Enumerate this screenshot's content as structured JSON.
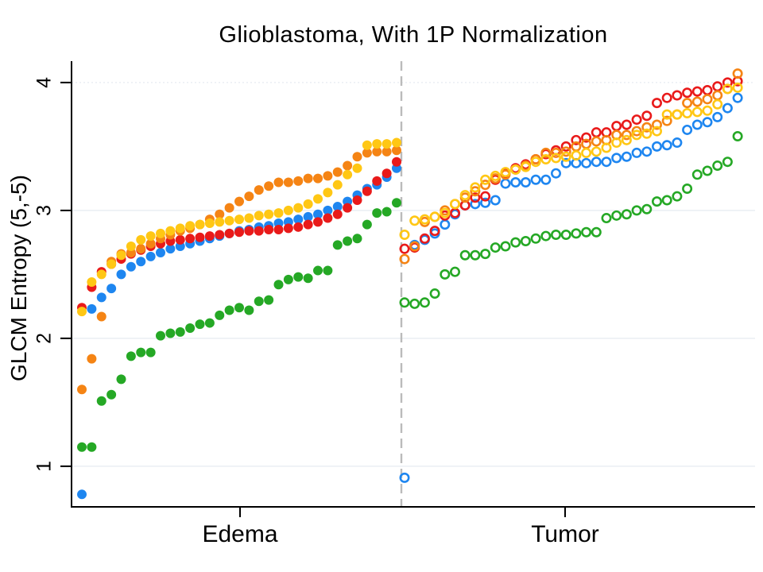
{
  "chart_data": {
    "type": "scatter",
    "title": "Glioblastoma, With 1P Normalization",
    "ylabel": "GLCM Entropy (5,-5)",
    "xlabel": "",
    "yticks": [
      1,
      2,
      3,
      4
    ],
    "ylim": [
      0.68,
      4.17
    ],
    "grid": true,
    "legend_position": "none",
    "groups": [
      {
        "label": "Edema",
        "marker": "filled-circle"
      },
      {
        "label": "Tumor",
        "marker": "open-circle"
      }
    ],
    "divider": {
      "style": "dashed",
      "color": "#BBBBBB"
    },
    "axis_color": "#000000",
    "grid_color": "#E9EEF3",
    "series": [
      {
        "name": "green",
        "color": "#25A825",
        "edema": [
          1.15,
          1.15,
          1.51,
          1.56,
          1.68,
          1.86,
          1.89,
          1.89,
          2.02,
          2.04,
          2.05,
          2.08,
          2.11,
          2.12,
          2.18,
          2.22,
          2.24,
          2.22,
          2.29,
          2.3,
          2.42,
          2.46,
          2.48,
          2.47,
          2.53,
          2.53,
          2.73,
          2.76,
          2.78,
          2.89,
          2.98,
          2.99,
          3.06
        ],
        "tumor": [
          2.28,
          2.27,
          2.28,
          2.35,
          2.5,
          2.52,
          2.65,
          2.65,
          2.66,
          2.71,
          2.72,
          2.75,
          2.76,
          2.78,
          2.8,
          2.81,
          2.81,
          2.82,
          2.83,
          2.83,
          2.94,
          2.96,
          2.97,
          3.0,
          3.01,
          3.07,
          3.08,
          3.11,
          3.17,
          3.28,
          3.31,
          3.35,
          3.38,
          3.58
        ]
      },
      {
        "name": "blue",
        "color": "#1E86F0",
        "edema": [
          0.78,
          2.23,
          2.32,
          2.39,
          2.5,
          2.56,
          2.6,
          2.64,
          2.67,
          2.7,
          2.72,
          2.74,
          2.76,
          2.78,
          2.8,
          2.82,
          2.84,
          2.85,
          2.87,
          2.88,
          2.9,
          2.91,
          2.93,
          2.95,
          2.97,
          3.0,
          3.03,
          3.07,
          3.12,
          3.17,
          3.2,
          3.26,
          3.33
        ],
        "tumor": [
          0.91,
          2.73,
          2.77,
          2.82,
          2.89,
          2.97,
          3.04,
          3.05,
          3.06,
          3.08,
          3.21,
          3.22,
          3.22,
          3.24,
          3.24,
          3.29,
          3.37,
          3.37,
          3.37,
          3.38,
          3.38,
          3.41,
          3.42,
          3.45,
          3.46,
          3.5,
          3.51,
          3.53,
          3.63,
          3.67,
          3.69,
          3.73,
          3.8,
          3.88
        ]
      },
      {
        "name": "red",
        "color": "#E91A1A",
        "edema": [
          2.24,
          2.4,
          2.52,
          2.58,
          2.62,
          2.66,
          2.69,
          2.72,
          2.74,
          2.76,
          2.77,
          2.78,
          2.79,
          2.8,
          2.81,
          2.82,
          2.83,
          2.84,
          2.84,
          2.85,
          2.85,
          2.86,
          2.87,
          2.89,
          2.91,
          2.94,
          2.97,
          3.02,
          3.08,
          3.15,
          3.23,
          3.29,
          3.38
        ],
        "tumor": [
          2.7,
          2.71,
          2.78,
          2.84,
          2.96,
          2.98,
          3.04,
          3.1,
          3.11,
          3.24,
          3.29,
          3.33,
          3.36,
          3.4,
          3.44,
          3.47,
          3.5,
          3.55,
          3.57,
          3.61,
          3.61,
          3.66,
          3.67,
          3.71,
          3.74,
          3.84,
          3.88,
          3.9,
          3.92,
          3.93,
          3.94,
          3.97,
          4.0,
          4.01
        ]
      },
      {
        "name": "orange",
        "color": "#F58414",
        "edema": [
          1.6,
          1.84,
          2.17,
          2.6,
          2.66,
          2.67,
          2.7,
          2.74,
          2.78,
          2.81,
          2.84,
          2.86,
          2.89,
          2.93,
          2.97,
          3.02,
          3.07,
          3.11,
          3.16,
          3.19,
          3.22,
          3.22,
          3.23,
          3.25,
          3.25,
          3.27,
          3.3,
          3.35,
          3.42,
          3.45,
          3.46,
          3.46,
          3.47
        ],
        "tumor": [
          2.62,
          2.72,
          2.91,
          2.95,
          3.0,
          3.05,
          3.1,
          3.15,
          3.2,
          3.25,
          3.28,
          3.32,
          3.35,
          3.4,
          3.45,
          3.45,
          3.46,
          3.5,
          3.52,
          3.54,
          3.55,
          3.59,
          3.59,
          3.62,
          3.65,
          3.67,
          3.7,
          3.75,
          3.84,
          3.85,
          3.87,
          3.9,
          3.95,
          4.07
        ]
      },
      {
        "name": "yellow",
        "color": "#FFC714",
        "edema": [
          2.21,
          2.44,
          2.5,
          2.58,
          2.65,
          2.72,
          2.77,
          2.8,
          2.82,
          2.84,
          2.86,
          2.88,
          2.89,
          2.9,
          2.91,
          2.92,
          2.93,
          2.94,
          2.96,
          2.97,
          2.98,
          3.0,
          3.02,
          3.05,
          3.09,
          3.14,
          3.2,
          3.28,
          3.33,
          3.51,
          3.52,
          3.52,
          3.53
        ],
        "tumor": [
          2.81,
          2.92,
          2.93,
          2.95,
          2.98,
          3.05,
          3.12,
          3.18,
          3.24,
          3.27,
          3.3,
          3.32,
          3.34,
          3.38,
          3.4,
          3.41,
          3.42,
          3.43,
          3.45,
          3.46,
          3.49,
          3.53,
          3.55,
          3.59,
          3.6,
          3.62,
          3.75,
          3.75,
          3.76,
          3.77,
          3.78,
          3.83,
          3.95,
          3.96
        ]
      }
    ]
  }
}
